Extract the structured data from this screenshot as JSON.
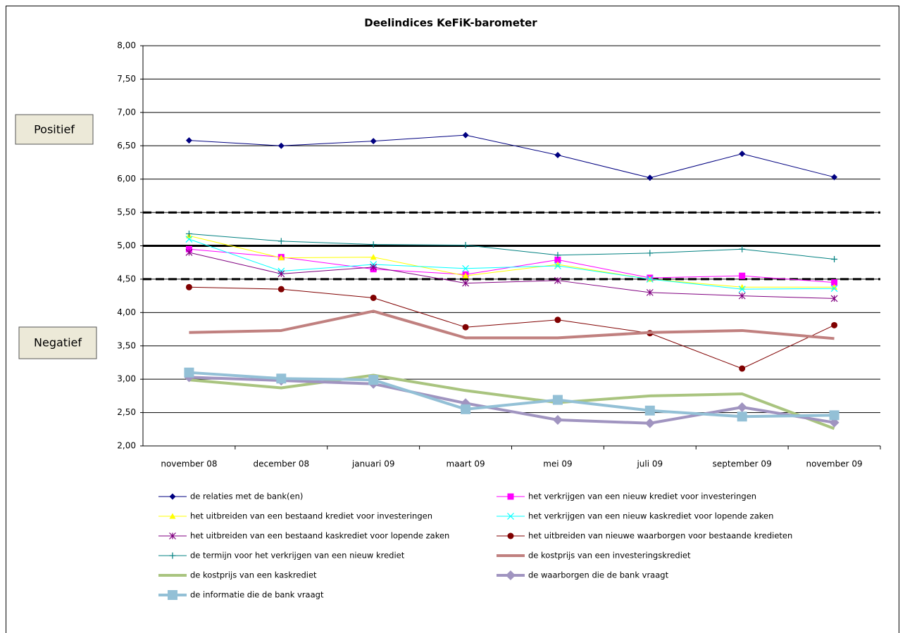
{
  "chart_data": {
    "type": "line",
    "title": "Deelindices KeFiK-barometer",
    "annotations": [
      "Positief",
      "Negatief"
    ],
    "categories": [
      "november 08",
      "december 08",
      "januari 09",
      "maart 09",
      "mei 09",
      "juli 09",
      "september 09",
      "november 09"
    ],
    "ylim": [
      2,
      8
    ],
    "yticks": [
      {
        "value": 2,
        "label": "2,00"
      },
      {
        "value": 2.5,
        "label": "2,50"
      },
      {
        "value": 3,
        "label": "3,00"
      },
      {
        "value": 3.5,
        "label": "3,50"
      },
      {
        "value": 4,
        "label": "4,00"
      },
      {
        "value": 4.5,
        "label": "4,50"
      },
      {
        "value": 5,
        "label": "5,00"
      },
      {
        "value": 5.5,
        "label": "5,50"
      },
      {
        "value": 6,
        "label": "6,00"
      },
      {
        "value": 6.5,
        "label": "6,50"
      },
      {
        "value": 7,
        "label": "7,00"
      },
      {
        "value": 7.5,
        "label": "7,50"
      },
      {
        "value": 8,
        "label": "8,00"
      }
    ],
    "grid": true,
    "reference_lines": [
      {
        "value": 5.5,
        "style": "dashed"
      },
      {
        "value": 5,
        "style": "solid"
      },
      {
        "value": 4.5,
        "style": "dashed"
      }
    ],
    "series": [
      {
        "name": "de relaties met de bank(en)",
        "color": "#000080",
        "marker": "diamond",
        "width": 1,
        "values": [
          6.58,
          6.5,
          6.57,
          6.66,
          6.36,
          6.02,
          6.38,
          6.03
        ]
      },
      {
        "name": "het verkrijgen van een nieuw krediet voor investeringen",
        "color": "#ff00ff",
        "marker": "square",
        "width": 1,
        "values": [
          4.95,
          4.83,
          4.65,
          4.57,
          4.79,
          4.52,
          4.55,
          4.45
        ]
      },
      {
        "name": "het uitbreiden van een bestaand krediet voor investeringen",
        "color": "#ffff00",
        "marker": "triangle",
        "width": 1,
        "values": [
          5.15,
          4.82,
          4.83,
          4.55,
          4.72,
          4.5,
          4.38,
          4.38
        ]
      },
      {
        "name": "het verkrijgen van een nieuw kaskrediet voor lopende zaken",
        "color": "#00ffff",
        "marker": "x",
        "width": 1,
        "values": [
          5.1,
          4.62,
          4.72,
          4.66,
          4.7,
          4.5,
          4.35,
          4.36
        ]
      },
      {
        "name": "het uitbreiden van een bestaand kaskrediet voor lopende zaken",
        "color": "#800080",
        "marker": "star",
        "width": 1,
        "values": [
          4.9,
          4.58,
          4.68,
          4.44,
          4.48,
          4.3,
          4.25,
          4.21
        ]
      },
      {
        "name": "het uitbreiden van nieuwe waarborgen voor bestaande kredieten",
        "color": "#800000",
        "marker": "circle",
        "width": 1,
        "values": [
          4.38,
          4.35,
          4.22,
          3.78,
          3.89,
          3.69,
          3.16,
          3.81
        ]
      },
      {
        "name": "de termijn voor het verkrijgen van een nieuw krediet",
        "color": "#008080",
        "marker": "plus",
        "width": 1,
        "values": [
          5.18,
          5.07,
          5.02,
          5.01,
          4.86,
          4.89,
          4.95,
          4.8
        ]
      },
      {
        "name": "de kostprijs van een investeringskrediet",
        "color": "#c0807f",
        "marker": "none",
        "width": 4,
        "values": [
          3.7,
          3.73,
          4.02,
          3.62,
          3.62,
          3.7,
          3.73,
          3.61
        ]
      },
      {
        "name": "de kostprijs van een kaskrediet",
        "color": "#a9c47f",
        "marker": "none",
        "width": 4,
        "values": [
          2.99,
          2.87,
          3.06,
          2.83,
          2.65,
          2.75,
          2.78,
          2.26
        ]
      },
      {
        "name": "de waarborgen die de bank vraagt",
        "color": "#a094c0",
        "marker": "diamond",
        "width": 4,
        "values": [
          3.03,
          2.98,
          2.93,
          2.64,
          2.39,
          2.34,
          2.58,
          2.35
        ]
      },
      {
        "name": "de informatie die de bank vraagt",
        "color": "#93c0d6",
        "marker": "square",
        "width": 4,
        "values": [
          3.1,
          3.01,
          2.99,
          2.55,
          2.69,
          2.53,
          2.44,
          2.46
        ]
      }
    ]
  }
}
